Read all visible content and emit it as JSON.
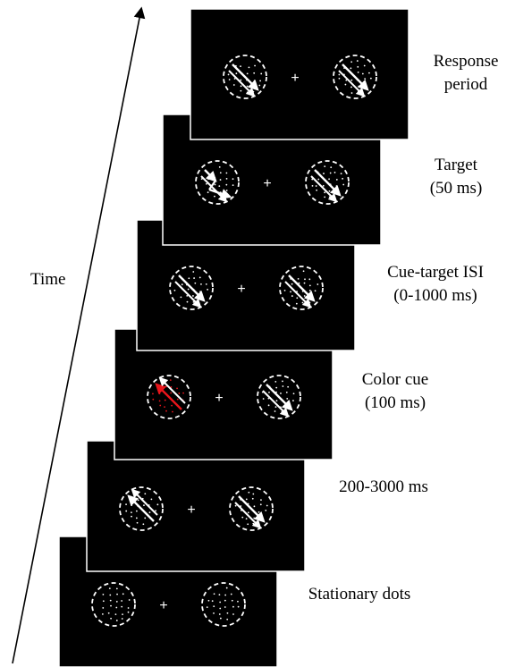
{
  "time_label": "Time",
  "colors": {
    "background": "#ffffff",
    "screen": "#000000",
    "stimulus": "#ffffff",
    "cue": "#e8151b"
  },
  "frames": [
    {
      "id": "stationary",
      "label_lines": [
        "Stationary dots"
      ],
      "fixation": "+",
      "left": {
        "motion": "none",
        "color": "white"
      },
      "right": {
        "motion": "none",
        "color": "white"
      }
    },
    {
      "id": "precue",
      "label_lines": [
        "200-3000 ms"
      ],
      "fixation": "+",
      "left": {
        "motion": "up-left",
        "color": "white"
      },
      "right": {
        "motion": "down-right",
        "color": "white"
      }
    },
    {
      "id": "color-cue",
      "label_lines": [
        "Color cue",
        "(100 ms)"
      ],
      "fixation": "+",
      "left": {
        "motion": "up-left",
        "color": "red"
      },
      "right": {
        "motion": "down-right",
        "color": "white"
      }
    },
    {
      "id": "isi",
      "label_lines": [
        "Cue-target ISI",
        "(0-1000 ms)"
      ],
      "fixation": "+",
      "left": {
        "motion": "down-right",
        "color": "white"
      },
      "right": {
        "motion": "down-right",
        "color": "white"
      }
    },
    {
      "id": "target",
      "label_lines": [
        "Target",
        "(50 ms)"
      ],
      "fixation": "+",
      "left": {
        "motion": "target-shift",
        "color": "white"
      },
      "right": {
        "motion": "down-right",
        "color": "white"
      }
    },
    {
      "id": "response",
      "label_lines": [
        "Response",
        "period"
      ],
      "fixation": "+",
      "left": {
        "motion": "down-right",
        "color": "white"
      },
      "right": {
        "motion": "down-right",
        "color": "white"
      }
    }
  ]
}
